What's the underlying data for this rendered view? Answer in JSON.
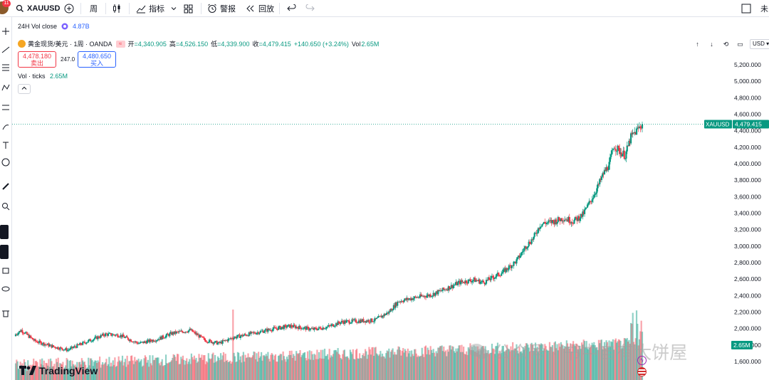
{
  "topbar": {
    "notif_count": "11",
    "symbol": "XAUUSD",
    "interval": "周",
    "indicators_label": "指标",
    "alert_label": "警报",
    "replay_label": "回放",
    "right_text": "未"
  },
  "header": {
    "vol_close_label": "24H Vol close",
    "vol_close_value": "4.87B",
    "instrument": "黄金现货/美元 · 1周 · OANDA",
    "ohlc": [
      {
        "k": "开",
        "v": "=4,340.905"
      },
      {
        "k": "高",
        "v": "=4,526.150"
      },
      {
        "k": "低",
        "v": "=4,339.900"
      },
      {
        "k": "收",
        "v": "=4,479.415"
      }
    ],
    "change": "+140.650 (+3.24%)",
    "vol_label": "Vol",
    "vol_value": "2.65M",
    "sell_price": "4,478.180",
    "sell_label": "卖出",
    "spread": "247.0",
    "buy_price": "4,480.650",
    "buy_label": "买入",
    "vol_ticks_label": "Vol · ticks",
    "vol_ticks_value": "2.65M",
    "currency": "USD"
  },
  "price_axis": {
    "ticks": [
      "5,200.000",
      "5,000.000",
      "4,800.000",
      "4,600.000",
      "4,400.000",
      "4,200.000",
      "4,000.000",
      "3,800.000",
      "3,600.000",
      "3,400.000",
      "3,200.000",
      "3,000.000",
      "2,800.000",
      "2,600.000",
      "2,400.000",
      "2,200.000",
      "2,000.000",
      "1,800.000",
      "1,600.000"
    ],
    "symbol_tag": "XAUUSD",
    "last_price_tag": "4,479.415",
    "vol_tag": "2.65M"
  },
  "chart_data": {
    "type": "candlestick",
    "symbol": "XAUUSD",
    "interval": "1W",
    "ylim": [
      1500,
      5300
    ],
    "last_price": 4479.415,
    "anchors": [
      [
        0,
        1930
      ],
      [
        6,
        1980
      ],
      [
        20,
        1850
      ],
      [
        40,
        1780
      ],
      [
        55,
        1740
      ],
      [
        75,
        1840
      ],
      [
        95,
        1930
      ],
      [
        110,
        1920
      ],
      [
        130,
        1820
      ],
      [
        150,
        1870
      ],
      [
        165,
        1940
      ],
      [
        185,
        1980
      ],
      [
        200,
        1860
      ],
      [
        215,
        1820
      ],
      [
        230,
        1890
      ],
      [
        250,
        1940
      ],
      [
        270,
        1990
      ],
      [
        290,
        2030
      ],
      [
        315,
        1990
      ],
      [
        330,
        2020
      ],
      [
        345,
        2080
      ],
      [
        360,
        2090
      ],
      [
        380,
        2100
      ],
      [
        395,
        2200
      ],
      [
        405,
        2330
      ],
      [
        425,
        2380
      ],
      [
        440,
        2410
      ],
      [
        455,
        2480
      ],
      [
        470,
        2560
      ],
      [
        485,
        2590
      ],
      [
        495,
        2560
      ],
      [
        505,
        2620
      ],
      [
        515,
        2680
      ],
      [
        530,
        2820
      ],
      [
        540,
        3000
      ],
      [
        548,
        3100
      ],
      [
        555,
        3260
      ],
      [
        560,
        3280
      ],
      [
        570,
        3300
      ],
      [
        580,
        3340
      ],
      [
        590,
        3300
      ],
      [
        600,
        3380
      ],
      [
        608,
        3540
      ],
      [
        616,
        3720
      ],
      [
        622,
        3880
      ],
      [
        628,
        3990
      ],
      [
        633,
        4220
      ],
      [
        639,
        4150
      ],
      [
        645,
        4100
      ],
      [
        651,
        4320
      ],
      [
        657,
        4400
      ],
      [
        663,
        4479
      ]
    ],
    "volume_max": 3200,
    "volume_spike_index": 230
  },
  "brand": {
    "logo_text": "TradingView",
    "watermark_text": "公众号 · 书中自有大饼屋"
  }
}
